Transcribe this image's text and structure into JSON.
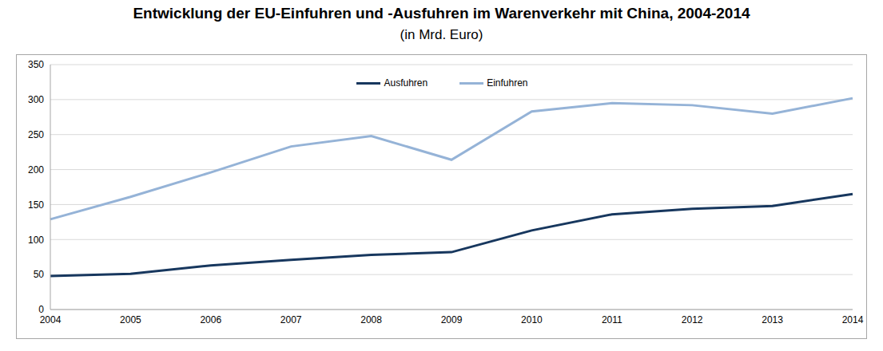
{
  "chart_data": {
    "type": "line",
    "title": "Entwicklung der EU-Einfuhren und -Ausfuhren im Warenverkehr mit China, 2004-2014",
    "subtitle": "(in Mrd. Euro)",
    "categories": [
      "2004",
      "2005",
      "2006",
      "2007",
      "2008",
      "2009",
      "2010",
      "2011",
      "2012",
      "2013",
      "2014"
    ],
    "series": [
      {
        "name": "Ausfuhren",
        "color": "#17375e",
        "values": [
          48,
          51,
          63,
          71,
          78,
          82,
          113,
          136,
          144,
          148,
          165
        ]
      },
      {
        "name": "Einfuhren",
        "color": "#95b3d7",
        "values": [
          129,
          161,
          196,
          233,
          248,
          214,
          283,
          295,
          292,
          280,
          302
        ]
      }
    ],
    "ylim": [
      0,
      350
    ],
    "yticks": [
      0,
      50,
      100,
      150,
      200,
      250,
      300,
      350
    ],
    "grid": true,
    "legend": "top"
  }
}
